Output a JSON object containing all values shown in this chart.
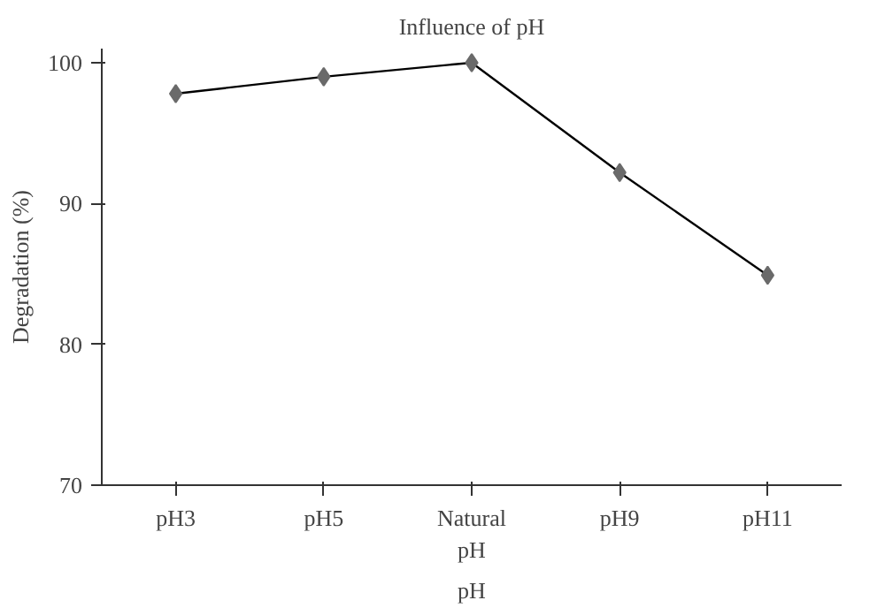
{
  "chart_data": {
    "type": "line",
    "title": "Influence of pH",
    "xlabel": "pH",
    "ylabel": "Degradation (%)",
    "categories": [
      "pH3",
      "pH5",
      "Natural\npH",
      "pH9",
      "pH11"
    ],
    "series": [
      {
        "color": "#000000",
        "values": [
          97.8,
          99.0,
          100.0,
          92.2,
          84.9
        ]
      }
    ],
    "marker": "diamond",
    "ylim": [
      70,
      101
    ],
    "yticks": [
      70,
      80,
      90,
      100
    ],
    "grid": false
  }
}
